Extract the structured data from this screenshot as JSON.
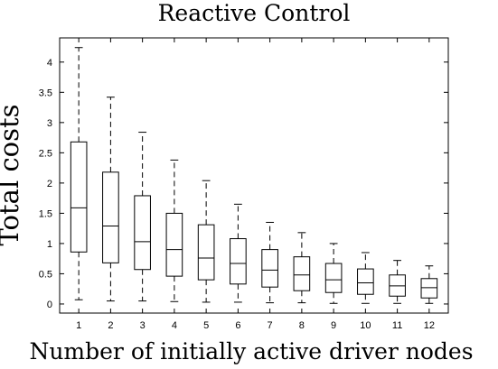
{
  "chart_data": {
    "type": "boxplot",
    "title": "Reactive Control",
    "xlabel": "Number of initially active driver nodes",
    "ylabel": "Total costs",
    "categories": [
      "1",
      "2",
      "3",
      "4",
      "5",
      "6",
      "7",
      "8",
      "9",
      "10",
      "11",
      "12"
    ],
    "ylim": [
      -0.15,
      4.4
    ],
    "yticks": [
      0,
      0.5,
      1,
      1.5,
      2,
      2.5,
      3,
      3.5,
      4
    ],
    "ytick_labels": [
      "0",
      "0.5",
      "1",
      "1.5",
      "2",
      "2.5",
      "3",
      "3.5",
      "4"
    ],
    "grid": false,
    "boxes": [
      {
        "whisker_low": 0.07,
        "q1": 0.86,
        "median": 1.59,
        "q3": 2.68,
        "whisker_high": 4.24
      },
      {
        "whisker_low": 0.05,
        "q1": 0.68,
        "median": 1.29,
        "q3": 2.18,
        "whisker_high": 3.42
      },
      {
        "whisker_low": 0.05,
        "q1": 0.57,
        "median": 1.03,
        "q3": 1.79,
        "whisker_high": 2.84
      },
      {
        "whisker_low": 0.04,
        "q1": 0.46,
        "median": 0.9,
        "q3": 1.5,
        "whisker_high": 2.38
      },
      {
        "whisker_low": 0.03,
        "q1": 0.4,
        "median": 0.76,
        "q3": 1.31,
        "whisker_high": 2.04
      },
      {
        "whisker_low": 0.03,
        "q1": 0.33,
        "median": 0.67,
        "q3": 1.08,
        "whisker_high": 1.65
      },
      {
        "whisker_low": 0.02,
        "q1": 0.28,
        "median": 0.56,
        "q3": 0.9,
        "whisker_high": 1.35
      },
      {
        "whisker_low": 0.02,
        "q1": 0.22,
        "median": 0.48,
        "q3": 0.78,
        "whisker_high": 1.18
      },
      {
        "whisker_low": 0.01,
        "q1": 0.19,
        "median": 0.4,
        "q3": 0.67,
        "whisker_high": 1.0
      },
      {
        "whisker_low": 0.01,
        "q1": 0.16,
        "median": 0.35,
        "q3": 0.58,
        "whisker_high": 0.85
      },
      {
        "whisker_low": 0.01,
        "q1": 0.13,
        "median": 0.3,
        "q3": 0.48,
        "whisker_high": 0.72
      },
      {
        "whisker_low": 0.01,
        "q1": 0.1,
        "median": 0.27,
        "q3": 0.42,
        "whisker_high": 0.63
      }
    ]
  }
}
